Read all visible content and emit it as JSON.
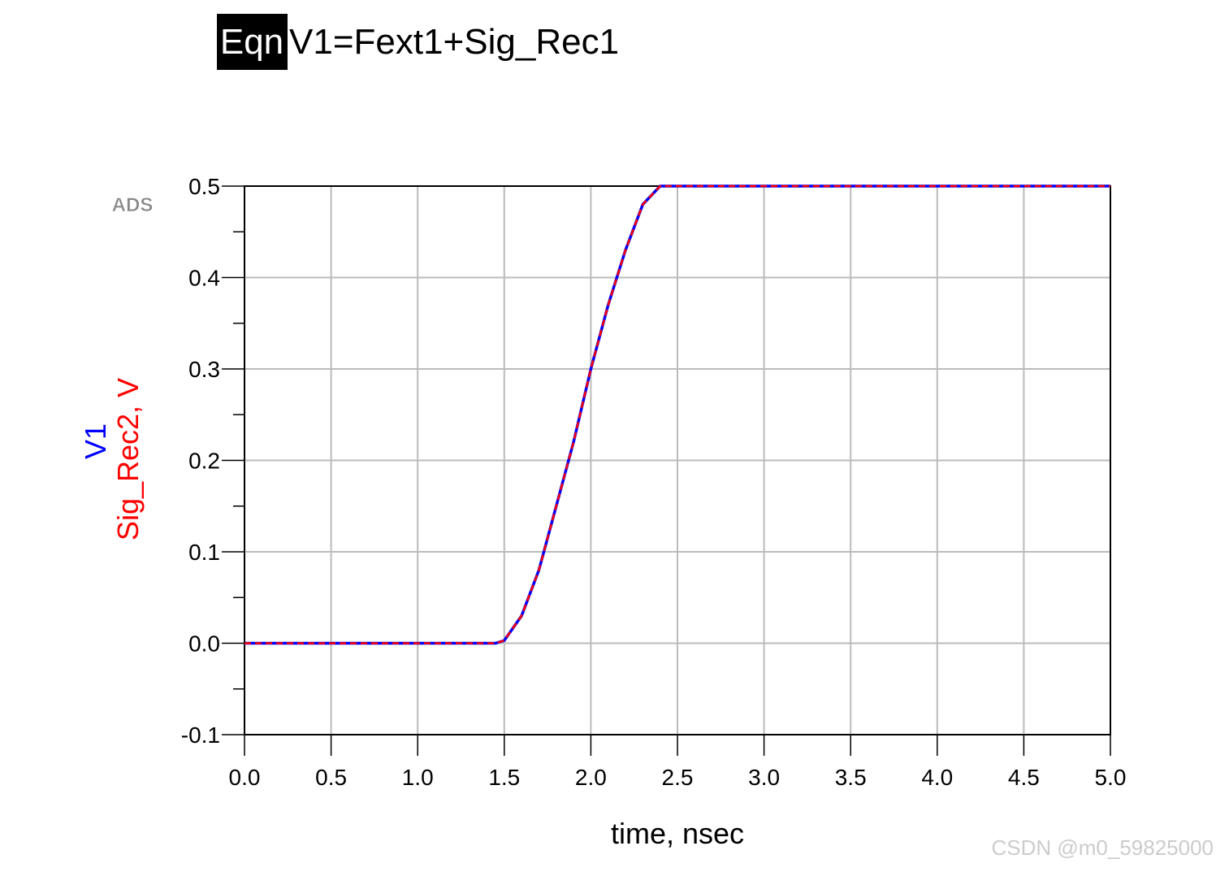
{
  "chart_data": {
    "type": "line",
    "equation_tag": "Eqn",
    "title": "V1=Fext1+Sig_Rec1",
    "logo": "ADS",
    "xlabel": "time, nsec",
    "watermark": "CSDN @m0_59825000",
    "x": [
      0,
      1.45,
      1.5,
      1.6,
      1.7,
      1.8,
      1.9,
      2.0,
      2.1,
      2.2,
      2.3,
      2.4,
      5.0
    ],
    "series": [
      {
        "name": "V1",
        "color": "#0000ff",
        "values": [
          0,
          0,
          0.003,
          0.03,
          0.08,
          0.15,
          0.22,
          0.3,
          0.37,
          0.43,
          0.48,
          0.5,
          0.5
        ]
      },
      {
        "name": "Sig_Rec2, V",
        "color": "#ff0000",
        "values": [
          0,
          0,
          0.003,
          0.03,
          0.08,
          0.15,
          0.22,
          0.3,
          0.37,
          0.43,
          0.48,
          0.5,
          0.5
        ]
      }
    ],
    "xlim": [
      0,
      5
    ],
    "ylim": [
      -0.1,
      0.5
    ],
    "xticks": [
      {
        "value": 0,
        "label": "0.0"
      },
      0.5,
      {
        "value": 1,
        "label": "1.0"
      },
      1.5,
      {
        "value": 2,
        "label": "2.0"
      },
      2.5,
      {
        "value": 3,
        "label": "3.0"
      },
      3.5,
      {
        "value": 4,
        "label": "4.0"
      },
      4.5,
      {
        "value": 5,
        "label": "5.0"
      }
    ],
    "yticks": [
      -0.1,
      {
        "value": 0,
        "label": "0.0"
      },
      0.1,
      0.2,
      0.3,
      0.4,
      0.5
    ],
    "grid": true
  }
}
